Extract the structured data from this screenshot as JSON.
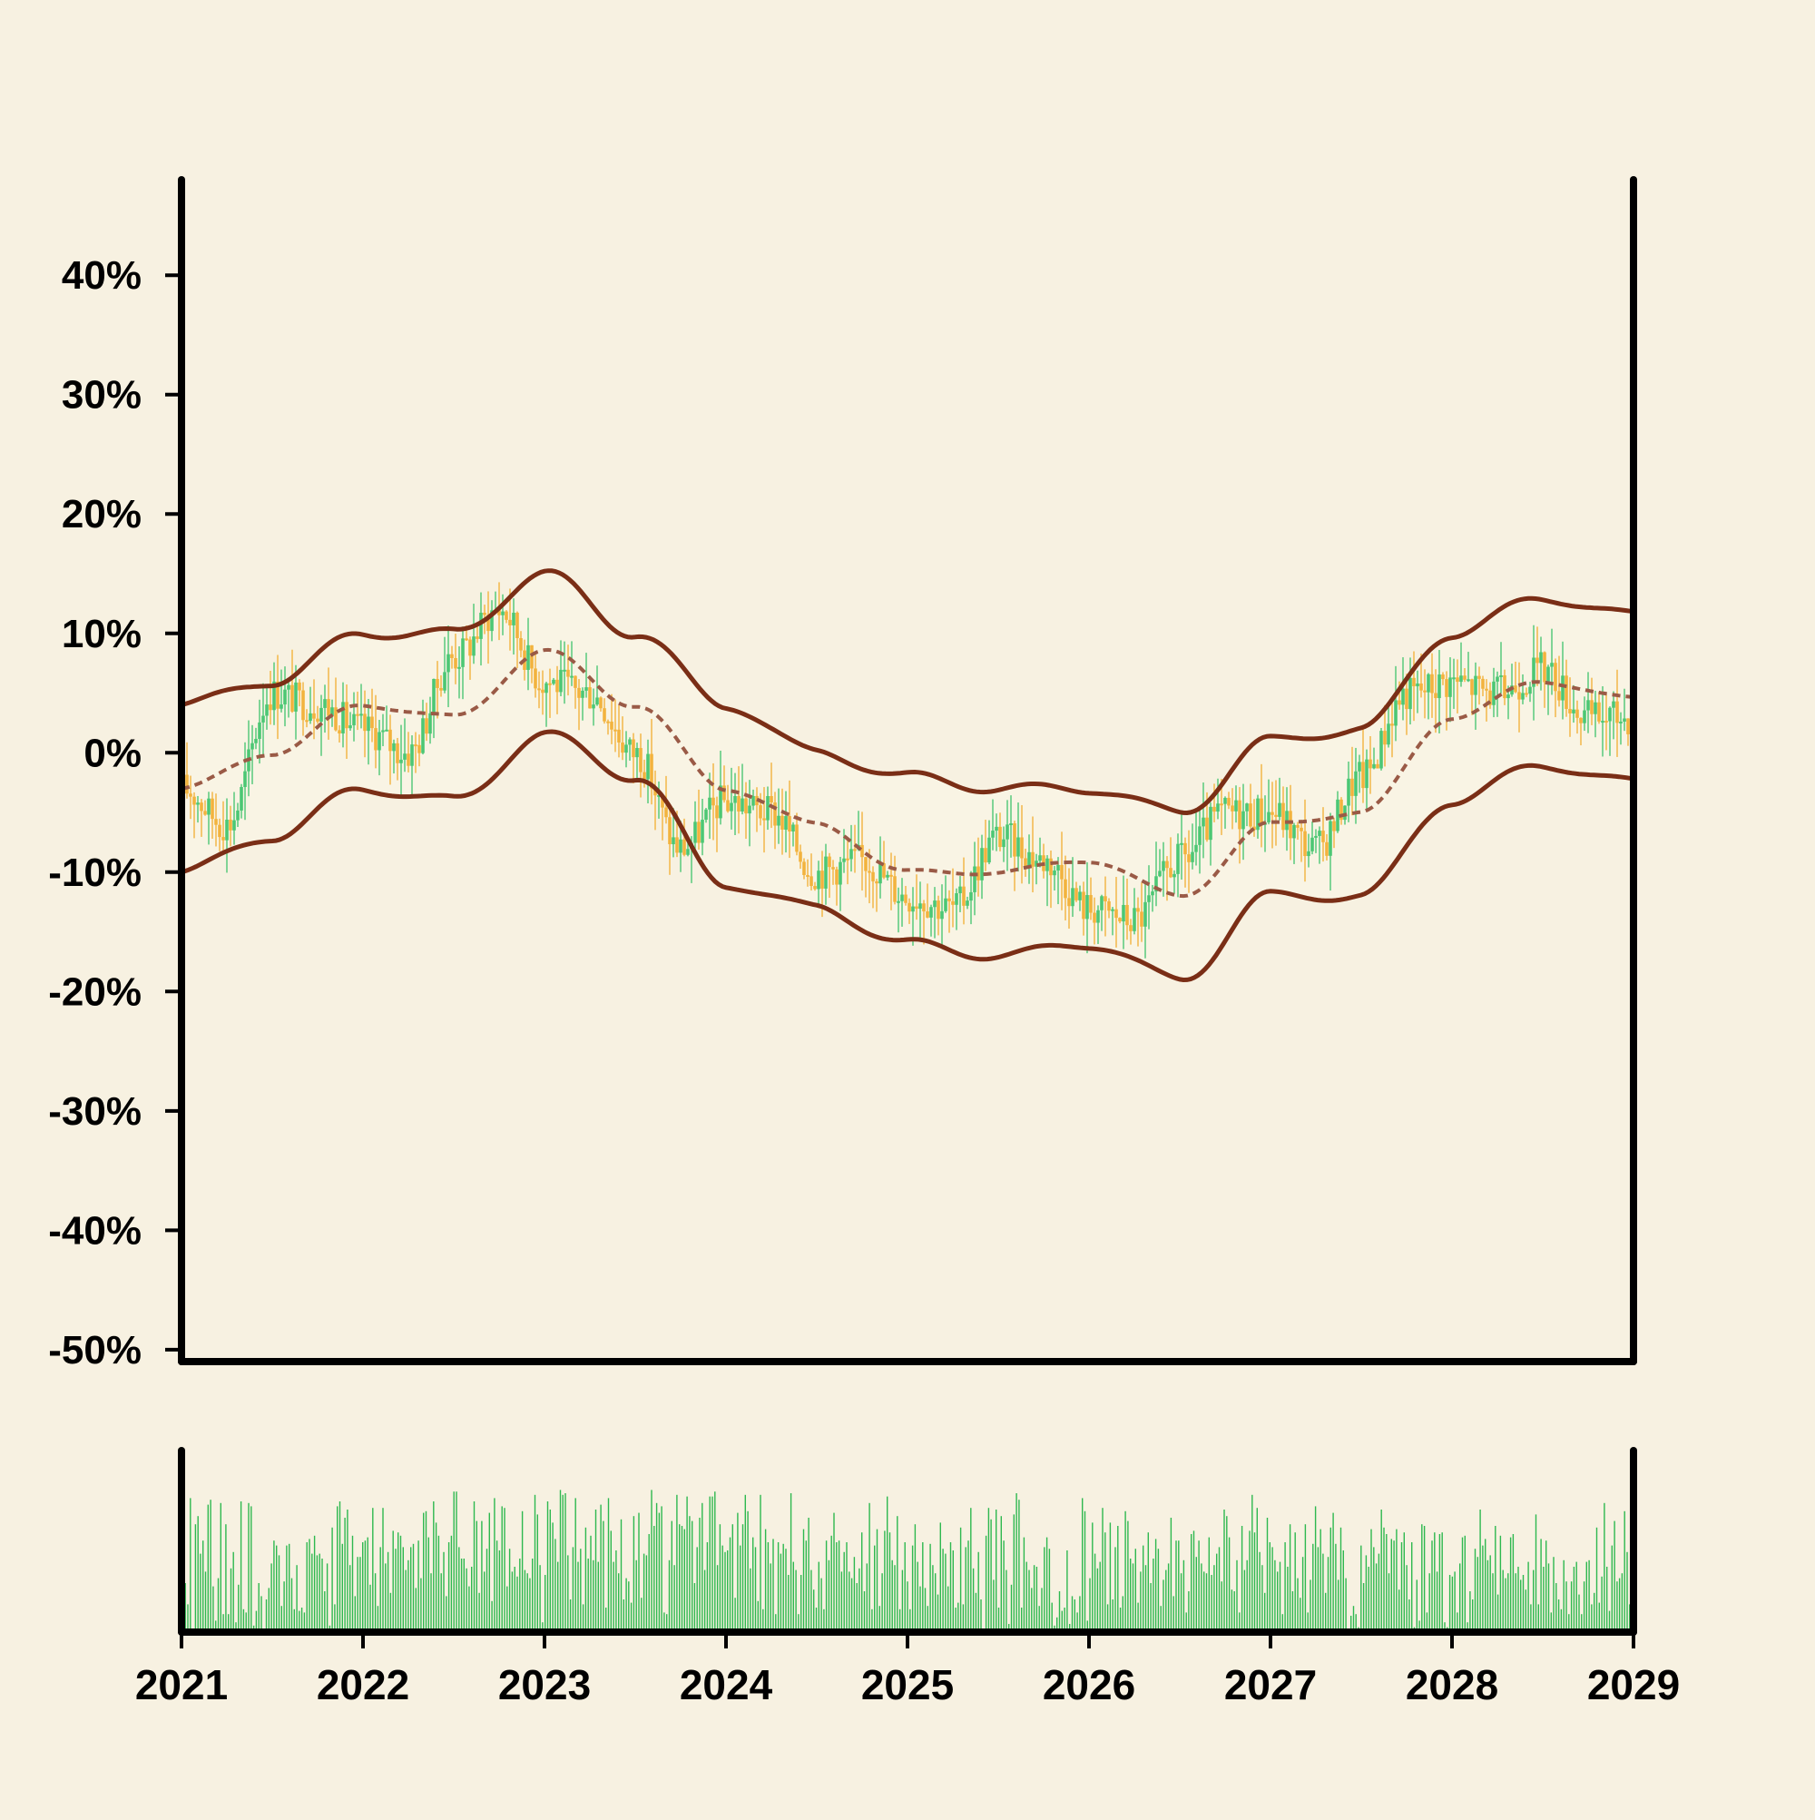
{
  "chart_data": [
    {
      "type": "candlestick",
      "x_range": [
        "2021",
        "2029"
      ],
      "x_ticks": [
        "2021",
        "2022",
        "2023",
        "2024",
        "2025",
        "2026",
        "2027",
        "2028",
        "2029"
      ],
      "y_ticks": [
        "40%",
        "30%",
        "20%",
        "10%",
        "0%",
        "-10%",
        "-20%",
        "-30%",
        "-40%",
        "-50%"
      ],
      "ylim": [
        -0.51,
        0.48
      ],
      "colors": {
        "up": "#4cc774",
        "down": "#f2b33e",
        "band": "#7a2e16",
        "mid": "#9a5a46",
        "band_fill": "#f9f4e4",
        "background": "#f7f1e1"
      },
      "close_path": [
        [
          "2021-01",
          -0.03
        ],
        [
          "2021-04",
          -0.06
        ],
        [
          "2021-07",
          0.05
        ],
        [
          "2021-10",
          0.04
        ],
        [
          "2022-01",
          0.02
        ],
        [
          "2022-04",
          0.0
        ],
        [
          "2022-07",
          0.08
        ],
        [
          "2022-10",
          0.12
        ],
        [
          "2023-01",
          0.06
        ],
        [
          "2023-04",
          0.05
        ],
        [
          "2023-07",
          0.0
        ],
        [
          "2023-10",
          -0.08
        ],
        [
          "2024-01",
          -0.04
        ],
        [
          "2024-04",
          -0.05
        ],
        [
          "2024-07",
          -0.1
        ],
        [
          "2024-10",
          -0.09
        ],
        [
          "2025-01",
          -0.12
        ],
        [
          "2025-04",
          -0.13
        ],
        [
          "2025-07",
          -0.07
        ],
        [
          "2025-10",
          -0.09
        ],
        [
          "2026-01",
          -0.13
        ],
        [
          "2026-04",
          -0.14
        ],
        [
          "2026-07",
          -0.09
        ],
        [
          "2026-10",
          -0.05
        ],
        [
          "2027-01",
          -0.05
        ],
        [
          "2027-04",
          -0.08
        ],
        [
          "2027-07",
          -0.02
        ],
        [
          "2027-10",
          0.05
        ],
        [
          "2028-01",
          0.06
        ],
        [
          "2028-04",
          0.05
        ],
        [
          "2028-07",
          0.07
        ],
        [
          "2028-10",
          0.03
        ],
        [
          "2029-01",
          0.03
        ]
      ],
      "bands": {
        "upper": [
          [
            "2021-01",
            0.04
          ],
          [
            "2021-07",
            0.06
          ],
          [
            "2022-01",
            0.1
          ],
          [
            "2022-07",
            0.1
          ],
          [
            "2023-01",
            0.15
          ],
          [
            "2023-07",
            0.1
          ],
          [
            "2024-01",
            0.04
          ],
          [
            "2024-07",
            0.0
          ],
          [
            "2025-01",
            -0.02
          ],
          [
            "2025-07",
            -0.03
          ],
          [
            "2026-01",
            -0.03
          ],
          [
            "2026-07",
            -0.05
          ],
          [
            "2027-01",
            0.01
          ],
          [
            "2027-07",
            0.02
          ],
          [
            "2028-01",
            0.1
          ],
          [
            "2028-07",
            0.13
          ],
          [
            "2029-01",
            0.115
          ]
        ],
        "middle": [
          [
            "2021-01",
            -0.03
          ],
          [
            "2021-07",
            0.0
          ],
          [
            "2022-01",
            0.04
          ],
          [
            "2022-07",
            0.03
          ],
          [
            "2023-01",
            0.085
          ],
          [
            "2023-07",
            0.04
          ],
          [
            "2024-01",
            -0.03
          ],
          [
            "2024-07",
            -0.06
          ],
          [
            "2025-01",
            -0.1
          ],
          [
            "2025-07",
            -0.1
          ],
          [
            "2026-01",
            -0.09
          ],
          [
            "2026-07",
            -0.12
          ],
          [
            "2027-01",
            -0.06
          ],
          [
            "2027-07",
            -0.05
          ],
          [
            "2028-01",
            0.03
          ],
          [
            "2028-07",
            0.06
          ],
          [
            "2029-01",
            0.045
          ]
        ],
        "lower": [
          [
            "2021-01",
            -0.1
          ],
          [
            "2021-07",
            -0.07
          ],
          [
            "2022-01",
            -0.03
          ],
          [
            "2022-07",
            -0.04
          ],
          [
            "2023-01",
            0.015
          ],
          [
            "2023-07",
            -0.02
          ],
          [
            "2024-01",
            -0.11
          ],
          [
            "2024-07",
            -0.13
          ],
          [
            "2025-01",
            -0.16
          ],
          [
            "2025-07",
            -0.17
          ],
          [
            "2026-01",
            -0.16
          ],
          [
            "2026-07",
            -0.19
          ],
          [
            "2027-01",
            -0.12
          ],
          [
            "2027-07",
            -0.12
          ],
          [
            "2028-01",
            -0.04
          ],
          [
            "2028-07",
            -0.01
          ],
          [
            "2029-01",
            -0.025
          ]
        ]
      }
    },
    {
      "type": "bar",
      "color": "#2eb84f",
      "values_relative": [
        0.07,
        0.3,
        0.17,
        0.82,
        0,
        0.66,
        0.71,
        0.48,
        0.56,
        0.37,
        0.78,
        0.81,
        0.28,
        0.07,
        0.33,
        0.79,
        0.11,
        0.66,
        0.11,
        0.39,
        0.49,
        0.06,
        0.29,
        0.8,
        0.14,
        0.12,
        0.79,
        0.77,
        0.04,
        0.13,
        0.3,
        0.22,
        0,
        0.2,
        0.27,
        0.42,
        0.56,
        0.53,
        0.47,
        0.16,
        0.31,
        0.53,
        0.54,
        0.33,
        0.14,
        0.41,
        0.13,
        0.15,
        0.12,
        0.55,
        0.57,
        0.48,
        0.59,
        0.47,
        0.48,
        0.45,
        0.25,
        0.42,
        0.04,
        0.64,
        0.17,
        0.77,
        0.8,
        0.54,
        0.7,
        0.75,
        0.41,
        0.59,
        0.22,
        0.46,
        0.46,
        0.55,
        0.56,
        0.58,
        0.29,
        0.76,
        0.36,
        0.16,
        0.52,
        0.76,
        0.42,
        0.49,
        0.24,
        0.62,
        0.51,
        0.61,
        0.59,
        0.52,
        0.38,
        0.44,
        0.52,
        0.54,
        0.27,
        0.56,
        0.33,
        0.73,
        0.74,
        0.58,
        0.36,
        0.8,
        0.67,
        0.59,
        0.36,
        0.49,
        0.22,
        0.55,
        0.59,
        0.86,
        0.86,
        0.52,
        0.45,
        0.45,
        0.39,
        0.28,
        0.4,
        0.8,
        0.68,
        0.24,
        0.68,
        0.37,
        0.51,
        0.73,
        0.19,
        0.82,
        0.56,
        0.5,
        0.77,
        0.76,
        0.28,
        0.51,
        0.37,
        0.4,
        0.34,
        0.45,
        0.74,
        0.38,
        0.36,
        0.33,
        0.45,
        0.84,
        0.72,
        0.41,
        0.06,
        0.35,
        0.8,
        0.75,
        0.67,
        0.57,
        0.43,
        0.87,
        0.84,
        0.85,
        0.47,
        0.2,
        0.52,
        0.82,
        0.43,
        0.51,
        0.17,
        0.64,
        0.45,
        0.59,
        0.44,
        0.75,
        0.43,
        0.78,
        0.68,
        0.15,
        0.82,
        0.62,
        0.43,
        0.5,
        0.36,
        0.69,
        0.2,
        0.33,
        0.31,
        0.18,
        0.71,
        0.44,
        0.73,
        0.21,
        0.48,
        0.47,
        0.6,
        0.87,
        0.65,
        0.79,
        0.73,
        0.77,
        0.12,
        0.11,
        0.44,
        0.68,
        0.41,
        0.84,
        0.66,
        0.65,
        0.63,
        0.83,
        0.71,
        0.68,
        0.3,
        0.52,
        0.7,
        0.79,
        0.38,
        0.55,
        0.83,
        0.83,
        0.86,
        0.41,
        0.66,
        0.53,
        0.49,
        0.5,
        0.58,
        0.66,
        0.21,
        0.73,
        0.53,
        0.66,
        0.84,
        0.74,
        0.39,
        0.58,
        0.52,
        0.19,
        0.84,
        0.14,
        0.63,
        0.55,
        0.42,
        0.57,
        0.11,
        0.55,
        0.48,
        0.54,
        0.51,
        0.35,
        0.85,
        0.43,
        0.38,
        0.11,
        0.35,
        0.63,
        0.56,
        0.7,
        0.38,
        0.26,
        0.15,
        0.43,
        0.33,
        0.14,
        0.56,
        0.44,
        0.59,
        0.73,
        0.55,
        0.56,
        0.37,
        0.49,
        0.55,
        0.37,
        0.33,
        0.46,
        0.3,
        0.39,
        0.61,
        0.25,
        0.42,
        0.79,
        0.14,
        0.53,
        0.63,
        0.16,
        0.36,
        0.62,
        0.83,
        0.61,
        0.44,
        0.41,
        0.71,
        0.14,
        0.38,
        0.55,
        0.31,
        0.14,
        0.53,
        0.66,
        0.43,
        0.28,
        0.55,
        0.27,
        0.16,
        0.54,
        0.41,
        0.36,
        0.23,
        0.67,
        0.51,
        0.48,
        0.28,
        0.55,
        0.5,
        0.15,
        0.18,
        0.64,
        0.17,
        0.52,
        0.56,
        0.76,
        0.39,
        0.24,
        0.49,
        0.2,
        0.02,
        0.59,
        0.76,
        0.69,
        0.32,
        0.75,
        0.15,
        0.71,
        0.56,
        0.38,
        0.05,
        0.29,
        0.72,
        0.85,
        0.81,
        0.15,
        0.58,
        0.43,
        0.38,
        0.27,
        0.41,
        0.4,
        0.16,
        0.27,
        0.52,
        0.58,
        0.51,
        0.18,
        0.04,
        0.09,
        0.25,
        0.13,
        0.15,
        0.5,
        0.05,
        0.22,
        0.2,
        0.12,
        0.22,
        0.82,
        0.74,
        0.07,
        0.33,
        0.67,
        0.48,
        0.39,
        0.43,
        0.76,
        0.61,
        0.17,
        0.67,
        0.2,
        0.52,
        0.65,
        0.15,
        0.22,
        0.74,
        0.68,
        0.45,
        0.42,
        0.51,
        0.18,
        0.37,
        0.53,
        0.41,
        0.61,
        0.3,
        0.45,
        0.57,
        0.51,
        0.16,
        0.32,
        0.38,
        0.42,
        0.7,
        0.22,
        0.56,
        0.56,
        0.36,
        0.44,
        0.12,
        0.25,
        0.6,
        0.62,
        0.46,
        0.56,
        0.42,
        0.37,
        0.36,
        0.58,
        0.35,
        0.41,
        0.48,
        0.52,
        0.31,
        0.75,
        0.71,
        0.58,
        0.26,
        0.25,
        0.44,
        0.12,
        0.65,
        0.38,
        0.44,
        0.62,
        0.84,
        0.61,
        0.76,
        0.49,
        0.41,
        0.24,
        0.7,
        0.55,
        0.52,
        0.44,
        0.37,
        0.43,
        0.11,
        0.55,
        0.4,
        0.66,
        0.25,
        0.61,
        0.33,
        0.21,
        0.46,
        0.66,
        0.12,
        0.32,
        0.54,
        0.77,
        0.52,
        0.63,
        0.48,
        0.24,
        0.46,
        0.64,
        0.73,
        0.54,
        0.32,
        0.64,
        0.5,
        0.33,
        0.02,
        0.1,
        0.16,
        0.11,
        0.03,
        0.53,
        0.3,
        0.47,
        0.4,
        0.63,
        0.52,
        0.42,
        0.48,
        0.75,
        0.64,
        0.6,
        0.36,
        0.57,
        0.56,
        0.63,
        0.26,
        0.55,
        0.61,
        0.41,
        0.2,
        0.55,
        0.03,
        0.32,
        0.07,
        0.66,
        0.65,
        0.12,
        0.36,
        0.56,
        0.61,
        0.37,
        0.6,
        0.61,
        0.06,
        0.03,
        0.35,
        0.34,
        0.37,
        0.12,
        0.42,
        0.58,
        0.59,
        0.06,
        0.25,
        0.2,
        0.51,
        0.46,
        0.75,
        0.53,
        0.57,
        0.44,
        0.47,
        0.36,
        0.65,
        0.23,
        0.59,
        0.38,
        0.33,
        0.36,
        0.58,
        0.6,
        0.36,
        0.4,
        0.32,
        0.35,
        0.26,
        0.43,
        0.17,
        0.38,
        0.72,
        0.17,
        0.57,
        0.4,
        0.56,
        0.42,
        0.12,
        0.46,
        0.3,
        0.2,
        0.14,
        0.44,
        0.31,
        0.11,
        0.31,
        0.4,
        0.43,
        0.23,
        0.11,
        0.31,
        0.43,
        0.44,
        0.17,
        0.24,
        0.64,
        0.18,
        0.34,
        0.79,
        0.4,
        0.13,
        0.53,
        0.68,
        0.31,
        0.33,
        0.36,
        0.74,
        0.49,
        0.17,
        0.59
      ]
    }
  ]
}
